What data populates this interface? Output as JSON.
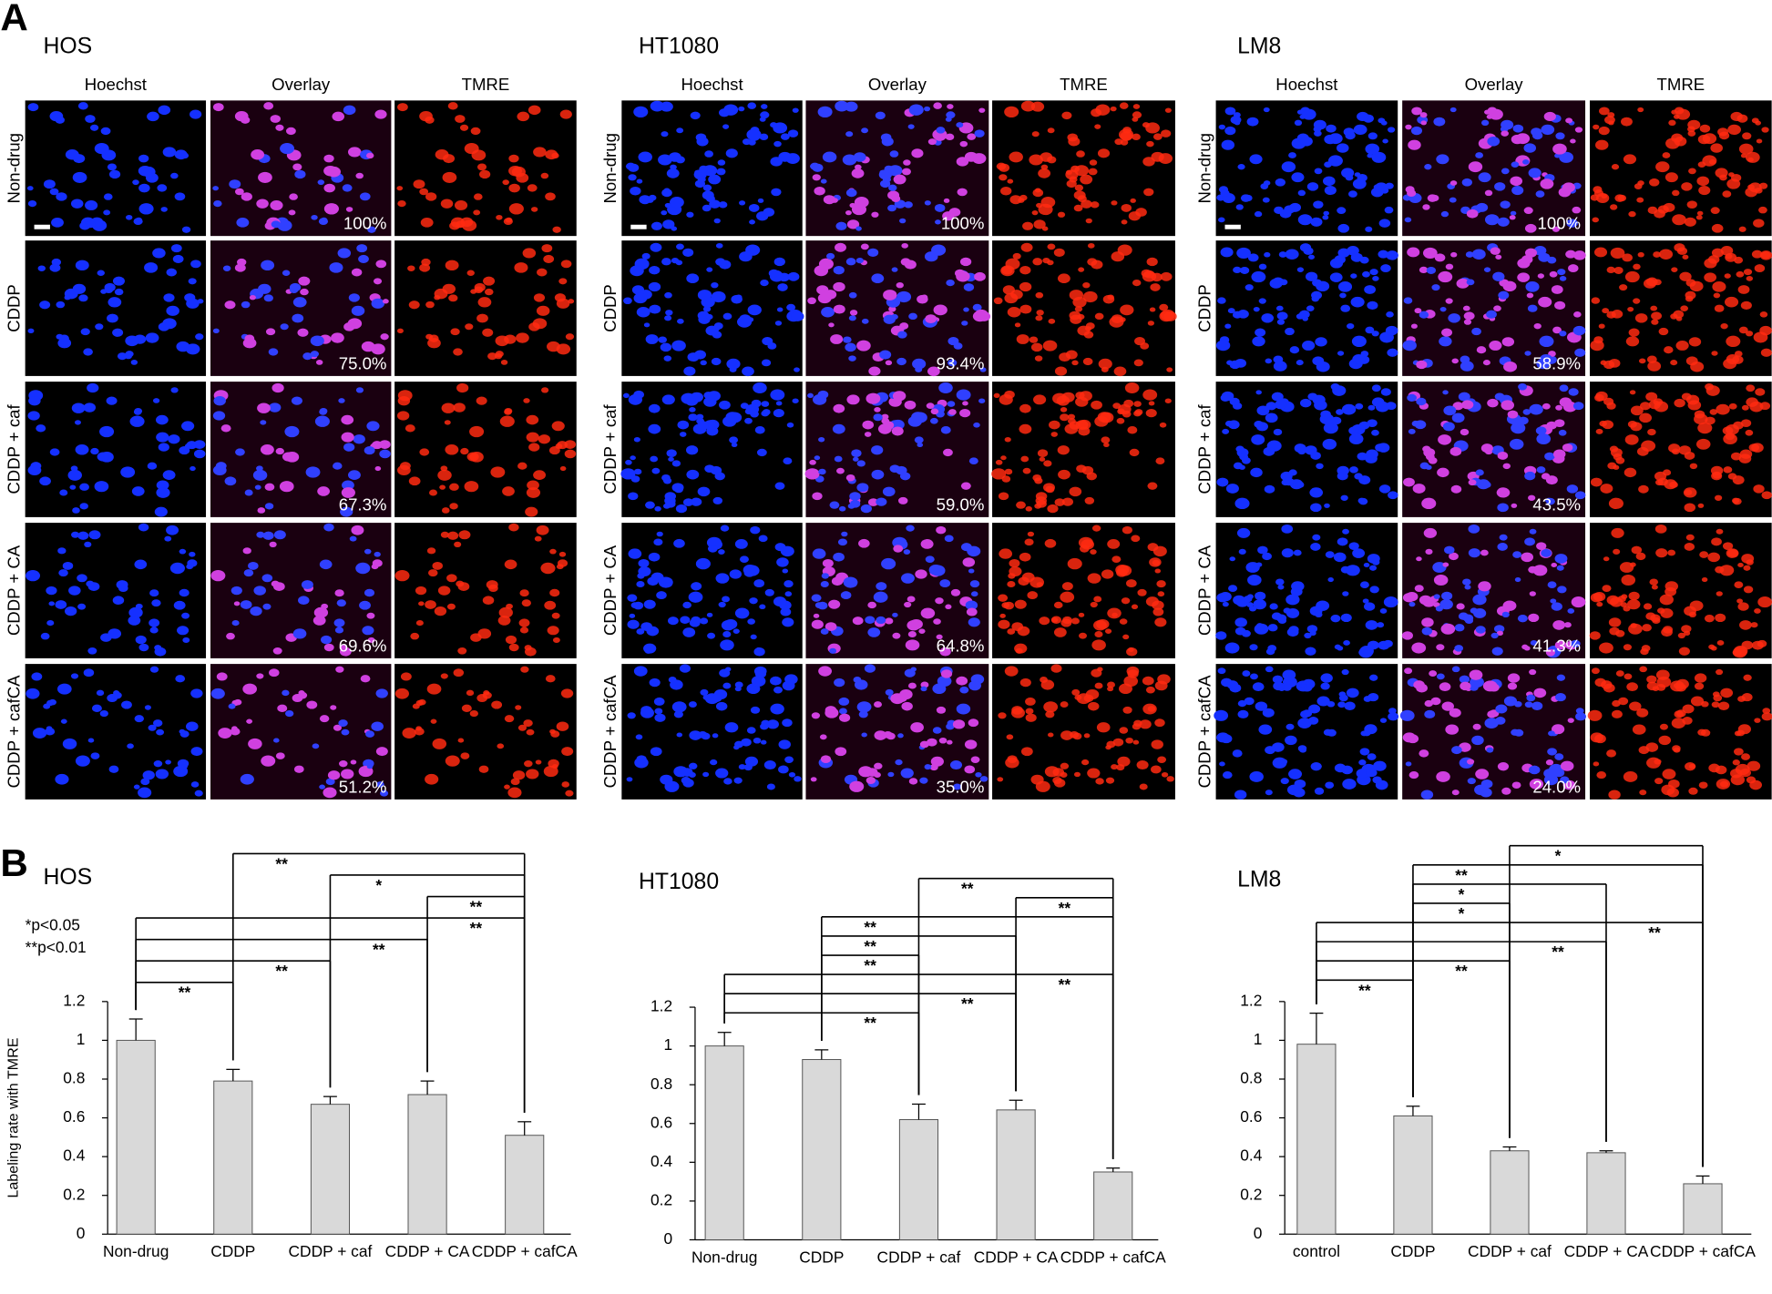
{
  "panel_a": {
    "label": "A",
    "columns": [
      "Hoechst",
      "Overlay",
      "TMRE"
    ],
    "rows": [
      "Non-drug",
      "CDDP",
      "CDDP + caf",
      "CDDP + CA",
      "CDDP + cafCA"
    ],
    "groups": [
      {
        "title": "HOS",
        "percents": [
          "100%",
          "75.0%",
          "67.3%",
          "69.6%",
          "51.2%"
        ]
      },
      {
        "title": "HT1080",
        "percents": [
          "100%",
          "93.4%",
          "59.0%",
          "64.8%",
          "35.0%"
        ]
      },
      {
        "title": "LM8",
        "percents": [
          "100%",
          "58.9%",
          "43.5%",
          "41.3%",
          "24.0%"
        ]
      }
    ]
  },
  "panel_b_label": "B",
  "chart_data": [
    {
      "type": "bar",
      "title": "HOS",
      "y_label": "Labeling rate with TMRE",
      "annotations": [
        "*p<0.05",
        "**p<0.01"
      ],
      "categories": [
        "Non-drug",
        "CDDP",
        "CDDP + caf",
        "CDDP + CA",
        "CDDP + cafCA"
      ],
      "values": [
        1.0,
        0.79,
        0.67,
        0.72,
        0.51
      ],
      "errors": [
        0.11,
        0.06,
        0.04,
        0.07,
        0.07
      ],
      "color": "#d9d9d9",
      "ylim": [
        0,
        1.2
      ],
      "yticks": [
        0,
        0.2,
        0.4,
        0.6,
        0.8,
        1,
        1.2
      ],
      "brackets": [
        {
          "pair": [
            0,
            1
          ],
          "label": "**"
        },
        {
          "pair": [
            0,
            2
          ],
          "label": "**"
        },
        {
          "pair": [
            0,
            3
          ],
          "label": "**"
        },
        {
          "pair": [
            0,
            4
          ],
          "label": "**"
        },
        {
          "pair": [
            3,
            4
          ],
          "label": "**"
        },
        {
          "pair": [
            2,
            4
          ],
          "label": "*"
        },
        {
          "pair": [
            1,
            4
          ],
          "label": "**"
        }
      ]
    },
    {
      "type": "bar",
      "title": "HT1080",
      "categories": [
        "Non-drug",
        "CDDP",
        "CDDP + caf",
        "CDDP + CA",
        "CDDP + cafCA"
      ],
      "values": [
        1.0,
        0.93,
        0.62,
        0.67,
        0.35
      ],
      "errors": [
        0.07,
        0.05,
        0.08,
        0.05,
        0.02
      ],
      "color": "#d9d9d9",
      "ylim": [
        0,
        1.2
      ],
      "yticks": [
        0,
        0.2,
        0.4,
        0.6,
        0.8,
        1,
        1.2
      ],
      "brackets": [
        {
          "pair": [
            0,
            2
          ],
          "label": "**"
        },
        {
          "pair": [
            0,
            3
          ],
          "label": "**"
        },
        {
          "pair": [
            0,
            4
          ],
          "label": "**"
        },
        {
          "pair": [
            1,
            2
          ],
          "label": "**"
        },
        {
          "pair": [
            1,
            3
          ],
          "label": "**"
        },
        {
          "pair": [
            1,
            4
          ],
          "label": "**"
        },
        {
          "pair": [
            3,
            4
          ],
          "label": "**"
        },
        {
          "pair": [
            2,
            4
          ],
          "label": "**"
        }
      ]
    },
    {
      "type": "bar",
      "title": "LM8",
      "categories": [
        "control",
        "CDDP",
        "CDDP + caf",
        "CDDP + CA",
        "CDDP + cafCA"
      ],
      "values": [
        0.98,
        0.61,
        0.43,
        0.42,
        0.26
      ],
      "errors": [
        0.16,
        0.05,
        0.02,
        0.01,
        0.04
      ],
      "color": "#d9d9d9",
      "ylim": [
        0,
        1.2
      ],
      "yticks": [
        0,
        0.2,
        0.4,
        0.6,
        0.8,
        1,
        1.2
      ],
      "brackets": [
        {
          "pair": [
            0,
            1
          ],
          "label": "**"
        },
        {
          "pair": [
            0,
            2
          ],
          "label": "**"
        },
        {
          "pair": [
            0,
            3
          ],
          "label": "**"
        },
        {
          "pair": [
            0,
            4
          ],
          "label": "**"
        },
        {
          "pair": [
            1,
            2
          ],
          "label": "*"
        },
        {
          "pair": [
            1,
            3
          ],
          "label": "*"
        },
        {
          "pair": [
            1,
            4
          ],
          "label": "**"
        },
        {
          "pair": [
            2,
            4
          ],
          "label": "*"
        }
      ]
    }
  ]
}
